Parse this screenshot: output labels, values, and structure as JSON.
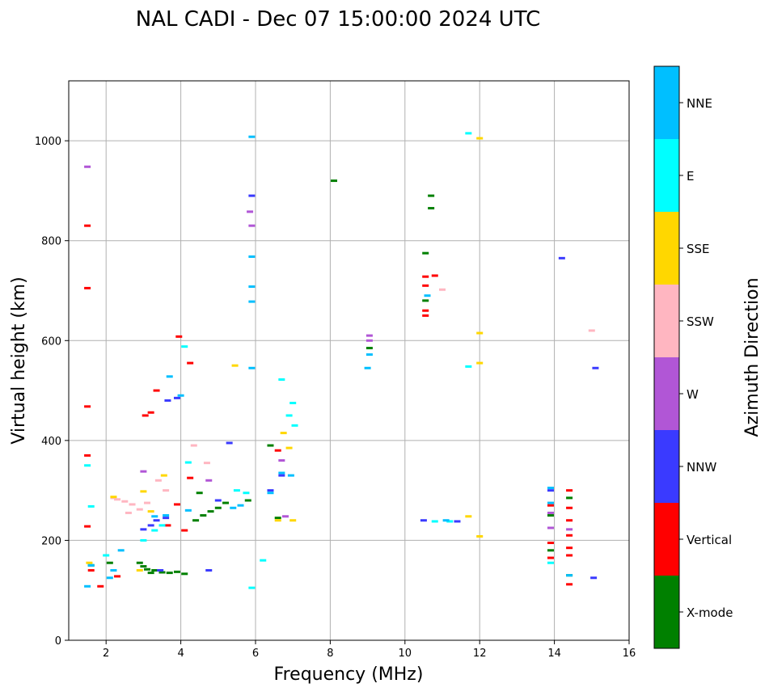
{
  "chart_data": {
    "type": "scatter",
    "title": "NAL CADI - Dec 07 15:00:00 2024 UTC",
    "xlabel": "Frequency (MHz)",
    "ylabel": "Virtual height (km)",
    "xlim": [
      1,
      16
    ],
    "ylim": [
      0,
      1120
    ],
    "xticks": [
      2,
      4,
      6,
      8,
      10,
      12,
      14,
      16
    ],
    "yticks": [
      0,
      200,
      400,
      600,
      800,
      1000
    ],
    "grid": true,
    "colorbar": {
      "label": "Azimuth Direction",
      "categories": [
        {
          "name": "X-mode",
          "color": "#008000"
        },
        {
          "name": "Vertical",
          "color": "#ff0000"
        },
        {
          "name": "NNW",
          "color": "#3a3aff"
        },
        {
          "name": "W",
          "color": "#b156d6"
        },
        {
          "name": "SSW",
          "color": "#ffb6c1"
        },
        {
          "name": "SSE",
          "color": "#ffd700"
        },
        {
          "name": "E",
          "color": "#00ffff"
        },
        {
          "name": "NNE",
          "color": "#00bfff"
        }
      ]
    },
    "series": [
      {
        "name": "X-mode",
        "points": [
          [
            2.9,
            155
          ],
          [
            3.0,
            148
          ],
          [
            3.1,
            142
          ],
          [
            3.3,
            140
          ],
          [
            3.5,
            136
          ],
          [
            3.7,
            135
          ],
          [
            3.9,
            137
          ],
          [
            4.1,
            133
          ],
          [
            3.2,
            135
          ],
          [
            4.4,
            240
          ],
          [
            4.6,
            250
          ],
          [
            4.8,
            258
          ],
          [
            5.0,
            265
          ],
          [
            5.2,
            275
          ],
          [
            4.5,
            295
          ],
          [
            5.8,
            280
          ],
          [
            6.4,
            390
          ],
          [
            6.6,
            245
          ],
          [
            8.1,
            920
          ],
          [
            9.05,
            585
          ],
          [
            10.55,
            775
          ],
          [
            10.55,
            680
          ],
          [
            10.7,
            865
          ],
          [
            10.7,
            890
          ],
          [
            13.9,
            180
          ],
          [
            13.9,
            250
          ],
          [
            14.4,
            130
          ],
          [
            14.4,
            285
          ],
          [
            1.6,
            150
          ],
          [
            2.1,
            155
          ]
        ]
      },
      {
        "name": "Vertical",
        "points": [
          [
            1.5,
            830
          ],
          [
            1.5,
            705
          ],
          [
            1.5,
            468
          ],
          [
            1.5,
            370
          ],
          [
            1.5,
            228
          ],
          [
            1.6,
            140
          ],
          [
            1.85,
            108
          ],
          [
            2.3,
            128
          ],
          [
            3.05,
            450
          ],
          [
            3.2,
            456
          ],
          [
            3.35,
            500
          ],
          [
            3.65,
            230
          ],
          [
            3.9,
            272
          ],
          [
            3.95,
            608
          ],
          [
            4.25,
            555
          ],
          [
            4.25,
            325
          ],
          [
            4.1,
            220
          ],
          [
            6.6,
            380
          ],
          [
            10.55,
            650
          ],
          [
            10.55,
            660
          ],
          [
            10.55,
            710
          ],
          [
            10.55,
            728
          ],
          [
            10.8,
            730
          ],
          [
            13.9,
            165
          ],
          [
            13.9,
            195
          ],
          [
            13.9,
            270
          ],
          [
            14.4,
            112
          ],
          [
            14.4,
            170
          ],
          [
            14.4,
            185
          ],
          [
            14.4,
            210
          ],
          [
            14.4,
            240
          ],
          [
            14.4,
            265
          ],
          [
            14.4,
            300
          ]
        ]
      },
      {
        "name": "NNW",
        "points": [
          [
            3.0,
            222
          ],
          [
            3.2,
            230
          ],
          [
            3.35,
            240
          ],
          [
            3.6,
            245
          ],
          [
            3.65,
            480
          ],
          [
            3.9,
            485
          ],
          [
            4.75,
            140
          ],
          [
            5.0,
            280
          ],
          [
            5.3,
            395
          ],
          [
            5.9,
            890
          ],
          [
            6.4,
            300
          ],
          [
            6.7,
            330
          ],
          [
            10.5,
            240
          ],
          [
            11.4,
            238
          ],
          [
            14.2,
            765
          ],
          [
            15.05,
            125
          ],
          [
            15.1,
            545
          ],
          [
            13.9,
            300
          ],
          [
            3.45,
            140
          ]
        ]
      },
      {
        "name": "W",
        "points": [
          [
            1.5,
            948
          ],
          [
            5.85,
            858
          ],
          [
            5.9,
            830
          ],
          [
            6.7,
            360
          ],
          [
            6.8,
            248
          ],
          [
            9.05,
            610
          ],
          [
            9.05,
            600
          ],
          [
            13.9,
            225
          ],
          [
            13.9,
            255
          ],
          [
            14.4,
            222
          ],
          [
            4.75,
            320
          ],
          [
            3.0,
            338
          ]
        ]
      },
      {
        "name": "SSW",
        "points": [
          [
            2.3,
            282
          ],
          [
            2.5,
            278
          ],
          [
            2.7,
            272
          ],
          [
            2.9,
            262
          ],
          [
            3.1,
            275
          ],
          [
            3.4,
            320
          ],
          [
            3.6,
            300
          ],
          [
            4.35,
            390
          ],
          [
            4.7,
            355
          ],
          [
            11.0,
            702
          ],
          [
            15.0,
            620
          ],
          [
            2.6,
            255
          ],
          [
            2.2,
            285
          ]
        ]
      },
      {
        "name": "SSE",
        "points": [
          [
            1.55,
            155
          ],
          [
            2.2,
            287
          ],
          [
            3.0,
            298
          ],
          [
            3.2,
            258
          ],
          [
            3.55,
            330
          ],
          [
            5.45,
            550
          ],
          [
            6.6,
            240
          ],
          [
            6.75,
            415
          ],
          [
            6.9,
            385
          ],
          [
            7.0,
            240
          ],
          [
            12.0,
            1005
          ],
          [
            12.0,
            615
          ],
          [
            12.0,
            555
          ],
          [
            12.0,
            208
          ],
          [
            11.7,
            248
          ],
          [
            2.9,
            140
          ]
        ]
      },
      {
        "name": "E",
        "points": [
          [
            1.5,
            350
          ],
          [
            1.6,
            268
          ],
          [
            2.0,
            170
          ],
          [
            3.0,
            200
          ],
          [
            3.3,
            220
          ],
          [
            3.5,
            230
          ],
          [
            4.1,
            588
          ],
          [
            4.2,
            356
          ],
          [
            5.5,
            300
          ],
          [
            5.75,
            295
          ],
          [
            6.7,
            522
          ],
          [
            6.9,
            450
          ],
          [
            7.0,
            475
          ],
          [
            7.05,
            430
          ],
          [
            5.9,
            105
          ],
          [
            6.2,
            160
          ],
          [
            10.8,
            238
          ],
          [
            11.2,
            238
          ],
          [
            11.7,
            548
          ],
          [
            11.7,
            1015
          ],
          [
            13.9,
            155
          ]
        ]
      },
      {
        "name": "NNE",
        "points": [
          [
            1.5,
            108
          ],
          [
            1.6,
            150
          ],
          [
            2.1,
            125
          ],
          [
            2.4,
            180
          ],
          [
            3.3,
            248
          ],
          [
            3.6,
            250
          ],
          [
            3.7,
            528
          ],
          [
            4.0,
            490
          ],
          [
            4.2,
            260
          ],
          [
            5.4,
            265
          ],
          [
            5.6,
            270
          ],
          [
            5.9,
            545
          ],
          [
            5.9,
            1008
          ],
          [
            5.9,
            708
          ],
          [
            5.9,
            678
          ],
          [
            5.9,
            768
          ],
          [
            6.4,
            295
          ],
          [
            6.7,
            335
          ],
          [
            6.95,
            330
          ],
          [
            9.0,
            545
          ],
          [
            9.05,
            572
          ],
          [
            10.6,
            690
          ],
          [
            11.1,
            240
          ],
          [
            13.9,
            275
          ],
          [
            13.9,
            305
          ],
          [
            14.4,
            130
          ],
          [
            2.2,
            140
          ]
        ]
      }
    ]
  }
}
